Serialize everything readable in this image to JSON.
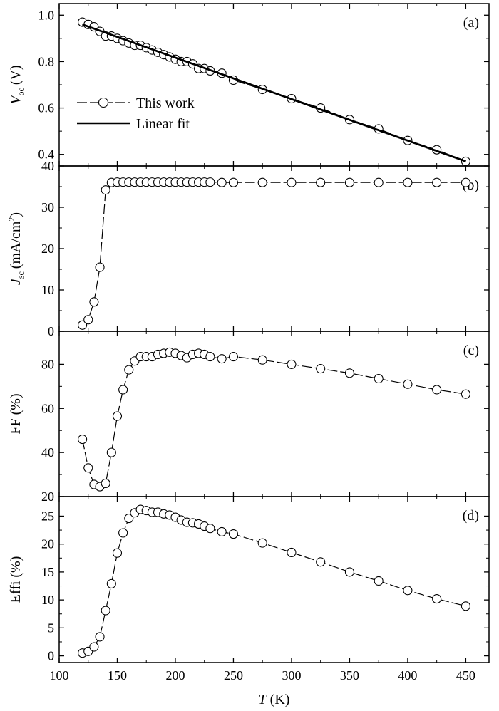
{
  "chart_data": [
    {
      "type": "scatter",
      "panel_label": "(a)",
      "ylabel_main": "V",
      "ylabel_sub": "oc",
      "ylabel_unit": "(V)",
      "ylim": [
        0.35,
        1.05
      ],
      "yticks": [
        0.4,
        0.6,
        0.8,
        1.0
      ],
      "ytick_labels": [
        "0.4",
        "0.6",
        "0.8",
        "1.0"
      ],
      "legend": {
        "position": "left",
        "entries": [
          "This work",
          "Linear fit"
        ]
      },
      "series": [
        {
          "name": "This work",
          "x": [
            120,
            125,
            130,
            135,
            140,
            145,
            150,
            155,
            160,
            165,
            170,
            175,
            180,
            185,
            190,
            195,
            200,
            205,
            210,
            215,
            220,
            225,
            230,
            240,
            250,
            275,
            300,
            325,
            350,
            375,
            400,
            425,
            450
          ],
          "y": [
            0.97,
            0.96,
            0.95,
            0.93,
            0.91,
            0.91,
            0.9,
            0.89,
            0.88,
            0.87,
            0.87,
            0.86,
            0.85,
            0.84,
            0.83,
            0.82,
            0.81,
            0.8,
            0.8,
            0.79,
            0.77,
            0.77,
            0.76,
            0.75,
            0.72,
            0.68,
            0.64,
            0.6,
            0.55,
            0.51,
            0.46,
            0.42,
            0.37
          ]
        },
        {
          "name": "Linear fit",
          "x": [
            120,
            450
          ],
          "y": [
            0.96,
            0.37
          ]
        }
      ]
    },
    {
      "type": "line",
      "panel_label": "(b)",
      "ylabel_main": "J",
      "ylabel_sub": "sc",
      "ylabel_unit": "(mA/cm",
      "ylabel_sup": "2",
      "ylabel_end": ")",
      "ylim": [
        0,
        40
      ],
      "yticks": [
        0,
        10,
        20,
        30,
        40
      ],
      "ytick_labels": [
        "0",
        "10",
        "20",
        "30",
        "40"
      ],
      "series": [
        {
          "name": "This work",
          "x": [
            120,
            125,
            130,
            135,
            140,
            145,
            150,
            155,
            160,
            165,
            170,
            175,
            180,
            185,
            190,
            195,
            200,
            205,
            210,
            215,
            220,
            225,
            230,
            240,
            250,
            275,
            300,
            325,
            350,
            375,
            400,
            425,
            450
          ],
          "y": [
            1.5,
            2.8,
            7.1,
            15.5,
            34.2,
            36.0,
            36.1,
            36.1,
            36.1,
            36.1,
            36.1,
            36.1,
            36.1,
            36.1,
            36.1,
            36.1,
            36.1,
            36.1,
            36.1,
            36.1,
            36.1,
            36.1,
            36.1,
            36.0,
            36.0,
            36.0,
            36.0,
            36.0,
            36.0,
            36.0,
            36.0,
            36.0,
            36.0
          ]
        }
      ]
    },
    {
      "type": "line",
      "panel_label": "(c)",
      "ylabel_main": "FF (%)",
      "ylim": [
        20,
        95
      ],
      "yticks": [
        20,
        40,
        60,
        80
      ],
      "ytick_labels": [
        "20",
        "40",
        "60",
        "80"
      ],
      "series": [
        {
          "name": "This work",
          "x": [
            120,
            125,
            130,
            135,
            140,
            145,
            150,
            155,
            160,
            165,
            170,
            175,
            180,
            185,
            190,
            195,
            200,
            205,
            210,
            215,
            220,
            225,
            230,
            240,
            250,
            275,
            300,
            325,
            350,
            375,
            400,
            425,
            450
          ],
          "y": [
            46,
            33,
            25.5,
            24.5,
            26,
            40,
            56.5,
            68.5,
            77.5,
            81.5,
            83.5,
            83.5,
            83.5,
            84.5,
            85,
            85.5,
            85,
            84,
            83,
            84.5,
            85,
            84.5,
            83.5,
            82.5,
            83.5,
            82,
            80,
            78,
            76,
            73.5,
            71,
            68.5,
            66.5
          ]
        }
      ]
    },
    {
      "type": "line",
      "panel_label": "(d)",
      "ylabel_main": "Effi (%)",
      "ylim": [
        -1.2,
        28.5
      ],
      "yticks": [
        0,
        5,
        10,
        15,
        20,
        25
      ],
      "ytick_labels": [
        "0",
        "5",
        "10",
        "15",
        "20",
        "25"
      ],
      "xlabel_main": "T",
      "xlabel_unit": "(K)",
      "xlim": [
        100,
        470
      ],
      "xticks": [
        100,
        150,
        200,
        250,
        300,
        350,
        400,
        450
      ],
      "xtick_labels": [
        "100",
        "150",
        "200",
        "250",
        "300",
        "350",
        "400",
        "450"
      ],
      "series": [
        {
          "name": "This work",
          "x": [
            120,
            125,
            130,
            135,
            140,
            145,
            150,
            155,
            160,
            165,
            170,
            175,
            180,
            185,
            190,
            195,
            200,
            205,
            210,
            215,
            220,
            225,
            230,
            240,
            250,
            275,
            300,
            325,
            350,
            375,
            400,
            425,
            450
          ],
          "y": [
            0.5,
            0.8,
            1.6,
            3.4,
            8.1,
            12.9,
            18.4,
            22.0,
            24.6,
            25.6,
            26.2,
            26.0,
            25.7,
            25.7,
            25.4,
            25.2,
            24.8,
            24.3,
            23.9,
            23.8,
            23.6,
            23.2,
            22.8,
            22.2,
            21.8,
            20.2,
            18.5,
            16.8,
            15.0,
            13.4,
            11.7,
            10.2,
            8.9
          ]
        }
      ]
    }
  ]
}
